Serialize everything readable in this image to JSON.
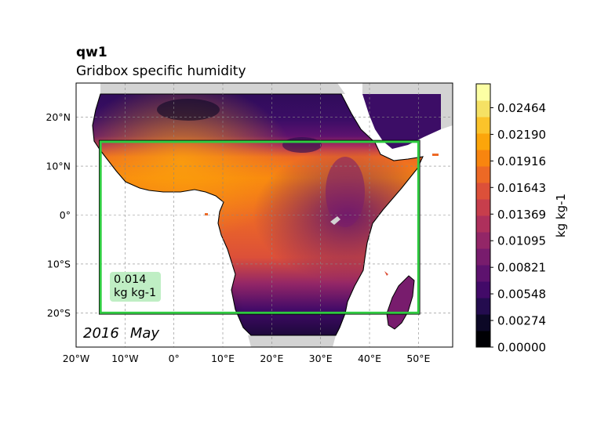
{
  "title": "qw1",
  "subtitle": "Gridbox specific humidity",
  "date": {
    "year": "2016",
    "month": "May"
  },
  "region_box": {
    "lon_min": -15,
    "lon_max": 50,
    "lat_min": -20,
    "lat_max": 15,
    "color": "#2ecc40"
  },
  "region_value": {
    "value": "0.014",
    "unit": "kg kg-1"
  },
  "map_extent": {
    "lon_min": -20,
    "lon_max": 57,
    "lat_min": -27,
    "lat_max": 27
  },
  "x_ticks": [
    {
      "lon": -20,
      "label": "20°W"
    },
    {
      "lon": -10,
      "label": "10°W"
    },
    {
      "lon": 0,
      "label": "0°"
    },
    {
      "lon": 10,
      "label": "10°E"
    },
    {
      "lon": 20,
      "label": "20°E"
    },
    {
      "lon": 30,
      "label": "30°E"
    },
    {
      "lon": 40,
      "label": "40°E"
    },
    {
      "lon": 50,
      "label": "50°E"
    }
  ],
  "y_ticks": [
    {
      "lat": 20,
      "label": "20°N"
    },
    {
      "lat": 10,
      "label": "10°N"
    },
    {
      "lat": 0,
      "label": "0°"
    },
    {
      "lat": -10,
      "label": "10°S"
    },
    {
      "lat": -20,
      "label": "20°S"
    }
  ],
  "colorbar": {
    "label": "kg kg-1",
    "min": 0.0,
    "max": 0.0271,
    "ticks": [
      {
        "value": 0.0,
        "label": "0.00000"
      },
      {
        "value": 0.00274,
        "label": "0.00274"
      },
      {
        "value": 0.00548,
        "label": "0.00548"
      },
      {
        "value": 0.00821,
        "label": "0.00821"
      },
      {
        "value": 0.01095,
        "label": "0.01095"
      },
      {
        "value": 0.01369,
        "label": "0.01369"
      },
      {
        "value": 0.01643,
        "label": "0.01643"
      },
      {
        "value": 0.01916,
        "label": "0.01916"
      },
      {
        "value": 0.0219,
        "label": "0.02190"
      },
      {
        "value": 0.02464,
        "label": "0.02464"
      }
    ],
    "colors": [
      "#000004",
      "#0c0826",
      "#240c4f",
      "#420a68",
      "#5d126e",
      "#781c6d",
      "#932667",
      "#ae305c",
      "#c73e4c",
      "#dc5039",
      "#ed6925",
      "#f8850f",
      "#fca50a",
      "#fbc32a",
      "#f5e164",
      "#fcffa4"
    ]
  },
  "colors": {
    "land_mask": "#d3d3d3",
    "ocean": "#ffffff",
    "coast": "#000000"
  }
}
